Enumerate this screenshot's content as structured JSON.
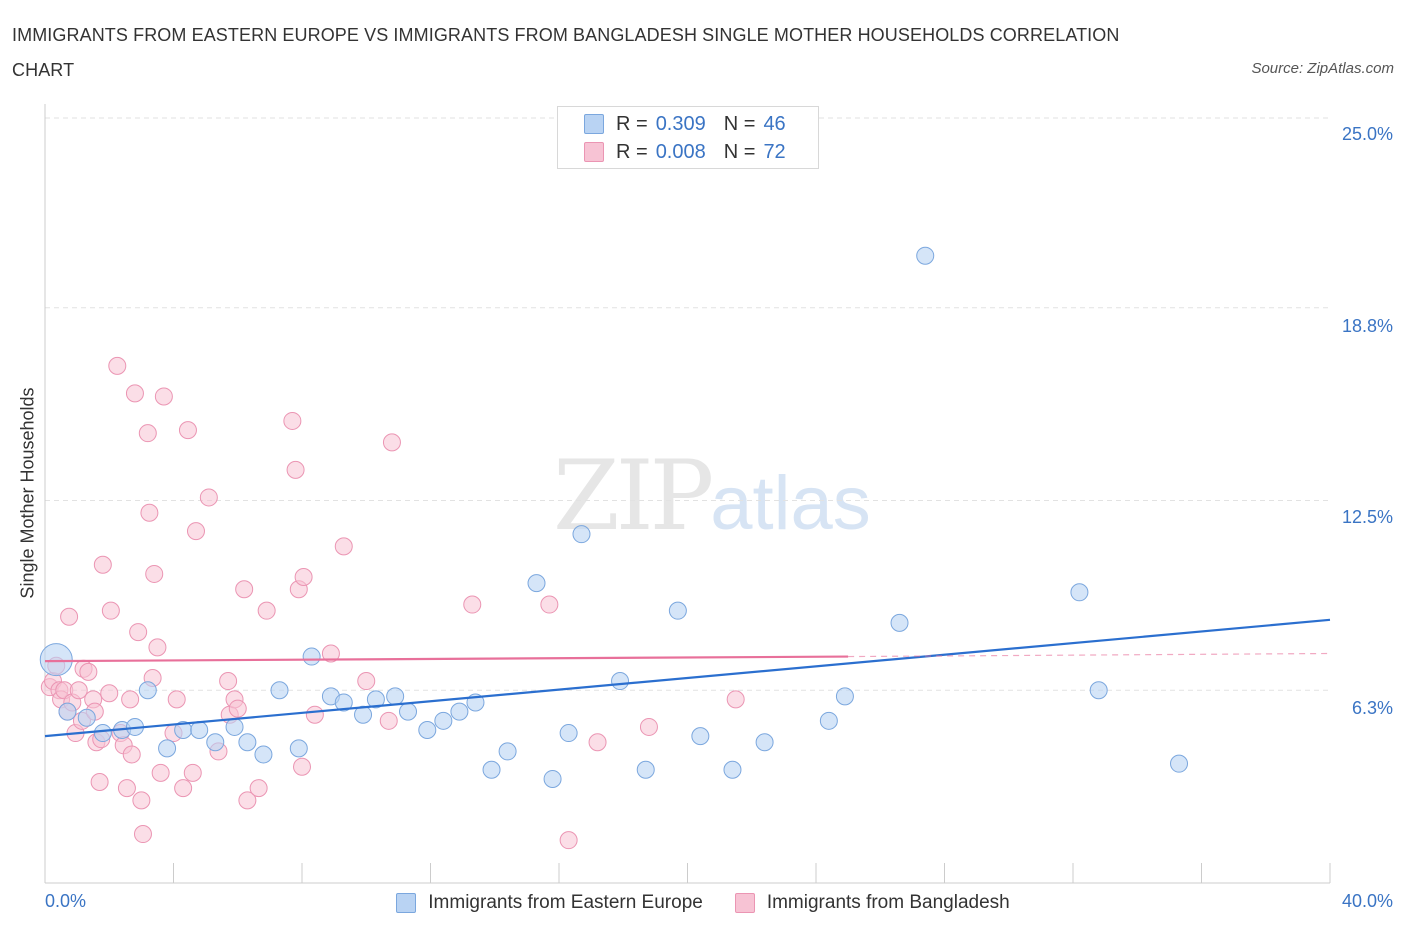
{
  "title": "IMMIGRANTS FROM EASTERN EUROPE VS IMMIGRANTS FROM BANGLADESH SINGLE MOTHER HOUSEHOLDS CORRELATION CHART",
  "source": "Source: ZipAtlas.com",
  "watermark": {
    "zip": "ZIP",
    "atlas": "atlas"
  },
  "legend_top": [
    {
      "r_label": "R =",
      "r_value": "0.309",
      "n_label": "N =",
      "n_value": "46"
    },
    {
      "r_label": "R =",
      "r_value": "0.008",
      "n_label": "N =",
      "n_value": "72"
    }
  ],
  "colors": {
    "blue_fill": "#b9d3f3",
    "blue_stroke": "#7ba7de",
    "blue_line": "#2b6fcf",
    "pink_fill": "#f7c3d4",
    "pink_stroke": "#eb95b3",
    "pink_line": "#e8709a",
    "tick_text": "#3a74c4",
    "grid": "#e2e2e2"
  },
  "chart_data": {
    "type": "scatter",
    "title": "IMMIGRANTS FROM EASTERN EUROPE VS IMMIGRANTS FROM BANGLADESH SINGLE MOTHER HOUSEHOLDS CORRELATION CHART",
    "xlabel": "",
    "ylabel": "Single Mother Households",
    "xlim": [
      0,
      40
    ],
    "ylim": [
      0,
      25
    ],
    "y_ticks": [
      6.3,
      12.5,
      18.8,
      25.0
    ],
    "y_tick_labels": [
      "6.3%",
      "12.5%",
      "18.8%",
      "25.0%"
    ],
    "x_tick_labels": [
      "0.0%",
      "40.0%"
    ],
    "grid": true,
    "legend_position": "bottom",
    "series": [
      {
        "name": "Immigrants from Eastern Europe",
        "color": "#b9d3f3",
        "points": [
          [
            0.35,
            7.3
          ],
          [
            0.7,
            5.6
          ],
          [
            1.3,
            5.4
          ],
          [
            1.8,
            4.9
          ],
          [
            2.4,
            5.0
          ],
          [
            2.8,
            5.1
          ],
          [
            3.2,
            6.3
          ],
          [
            3.8,
            4.4
          ],
          [
            4.3,
            5.0
          ],
          [
            4.8,
            5.0
          ],
          [
            5.3,
            4.6
          ],
          [
            5.9,
            5.1
          ],
          [
            6.3,
            4.6
          ],
          [
            6.8,
            4.2
          ],
          [
            7.3,
            6.3
          ],
          [
            7.9,
            4.4
          ],
          [
            8.3,
            7.4
          ],
          [
            8.9,
            6.1
          ],
          [
            9.3,
            5.9
          ],
          [
            9.9,
            5.5
          ],
          [
            10.3,
            6.0
          ],
          [
            10.9,
            6.1
          ],
          [
            11.3,
            5.6
          ],
          [
            11.9,
            5.0
          ],
          [
            12.4,
            5.3
          ],
          [
            12.9,
            5.6
          ],
          [
            13.4,
            5.9
          ],
          [
            13.9,
            3.7
          ],
          [
            14.4,
            4.3
          ],
          [
            15.3,
            9.8
          ],
          [
            15.8,
            3.4
          ],
          [
            16.3,
            4.9
          ],
          [
            16.7,
            11.4
          ],
          [
            17.9,
            6.6
          ],
          [
            18.7,
            3.7
          ],
          [
            19.7,
            8.9
          ],
          [
            20.4,
            4.8
          ],
          [
            21.4,
            3.7
          ],
          [
            22.4,
            4.6
          ],
          [
            24.4,
            5.3
          ],
          [
            24.9,
            6.1
          ],
          [
            26.6,
            8.5
          ],
          [
            27.4,
            20.5
          ],
          [
            32.2,
            9.5
          ],
          [
            32.8,
            6.3
          ],
          [
            35.3,
            3.9
          ]
        ],
        "trend": {
          "x": [
            0,
            40
          ],
          "y": [
            4.8,
            8.6
          ]
        }
      },
      {
        "name": "Immigrants from Bangladesh",
        "color": "#f7c3d4",
        "points": [
          [
            0.15,
            6.4
          ],
          [
            0.25,
            6.6
          ],
          [
            0.35,
            7.1
          ],
          [
            0.45,
            6.3
          ],
          [
            0.5,
            6.0
          ],
          [
            0.6,
            6.3
          ],
          [
            0.7,
            5.6
          ],
          [
            0.75,
            8.7
          ],
          [
            0.85,
            5.9
          ],
          [
            0.95,
            4.9
          ],
          [
            1.05,
            6.3
          ],
          [
            1.15,
            5.3
          ],
          [
            1.2,
            7.0
          ],
          [
            1.35,
            6.9
          ],
          [
            1.5,
            6.0
          ],
          [
            1.55,
            5.6
          ],
          [
            1.6,
            4.6
          ],
          [
            1.7,
            3.3
          ],
          [
            1.75,
            4.7
          ],
          [
            1.8,
            10.4
          ],
          [
            2.0,
            6.2
          ],
          [
            2.05,
            8.9
          ],
          [
            2.25,
            16.9
          ],
          [
            2.35,
            4.9
          ],
          [
            2.45,
            4.5
          ],
          [
            2.55,
            3.1
          ],
          [
            2.65,
            6.0
          ],
          [
            2.7,
            4.2
          ],
          [
            2.8,
            16.0
          ],
          [
            2.9,
            8.2
          ],
          [
            3.0,
            2.7
          ],
          [
            3.05,
            1.6
          ],
          [
            3.2,
            14.7
          ],
          [
            3.25,
            12.1
          ],
          [
            3.35,
            6.7
          ],
          [
            3.4,
            10.1
          ],
          [
            3.5,
            7.7
          ],
          [
            3.6,
            3.6
          ],
          [
            3.7,
            15.9
          ],
          [
            4.0,
            4.9
          ],
          [
            4.1,
            6.0
          ],
          [
            4.3,
            3.1
          ],
          [
            4.45,
            14.8
          ],
          [
            4.6,
            3.6
          ],
          [
            4.7,
            11.5
          ],
          [
            5.1,
            12.6
          ],
          [
            5.4,
            4.3
          ],
          [
            5.7,
            6.6
          ],
          [
            5.75,
            5.5
          ],
          [
            5.9,
            6.0
          ],
          [
            6.0,
            5.7
          ],
          [
            6.2,
            9.6
          ],
          [
            6.3,
            2.7
          ],
          [
            6.65,
            3.1
          ],
          [
            6.9,
            8.9
          ],
          [
            7.7,
            15.1
          ],
          [
            7.8,
            13.5
          ],
          [
            7.9,
            9.6
          ],
          [
            8.0,
            3.8
          ],
          [
            8.05,
            10.0
          ],
          [
            8.4,
            5.5
          ],
          [
            8.9,
            7.5
          ],
          [
            9.3,
            11.0
          ],
          [
            10.0,
            6.6
          ],
          [
            10.7,
            5.3
          ],
          [
            10.8,
            14.4
          ],
          [
            13.3,
            9.1
          ],
          [
            15.7,
            9.1
          ],
          [
            16.3,
            1.4
          ],
          [
            17.2,
            4.6
          ],
          [
            18.8,
            5.1
          ],
          [
            21.5,
            6.0
          ]
        ],
        "trend": {
          "x": [
            0,
            25
          ],
          "y": [
            7.25,
            7.4
          ]
        },
        "trend_dashed": {
          "x": [
            25,
            40
          ],
          "y": [
            7.4,
            7.5
          ]
        }
      }
    ]
  },
  "legend_bottom": [
    "Immigrants from Eastern Europe",
    "Immigrants from Bangladesh"
  ]
}
